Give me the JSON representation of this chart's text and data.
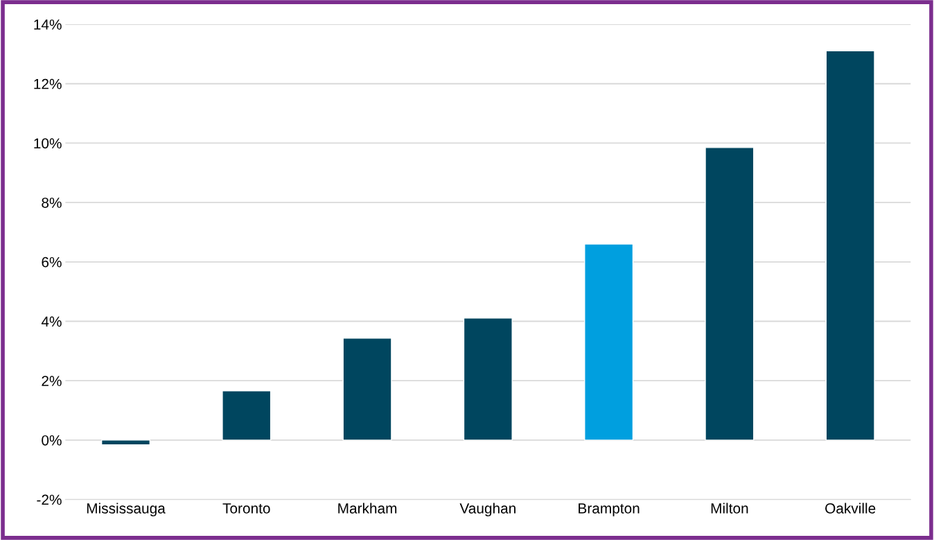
{
  "chart_data": {
    "type": "bar",
    "categories": [
      "Mississauga",
      "Toronto",
      "Markham",
      "Vaughan",
      "Brampton",
      "Milton",
      "Oakville"
    ],
    "values": [
      -0.16,
      1.66,
      3.43,
      4.11,
      6.6,
      9.85,
      13.11
    ],
    "colors": [
      "#00465f",
      "#00465f",
      "#00465f",
      "#00465f",
      "#009fdf",
      "#00465f",
      "#00465f"
    ],
    "ylim": [
      -2,
      14
    ],
    "yticks": [
      {
        "value": -2,
        "label": "-2%"
      },
      {
        "value": 0,
        "label": "0%"
      },
      {
        "value": 2,
        "label": "2%"
      },
      {
        "value": 4,
        "label": "4%"
      },
      {
        "value": 6,
        "label": "6%"
      },
      {
        "value": 8,
        "label": "8%"
      },
      {
        "value": 10,
        "label": "10%"
      },
      {
        "value": 12,
        "label": "12%"
      },
      {
        "value": 14,
        "label": "14%"
      }
    ],
    "grid": "y"
  }
}
